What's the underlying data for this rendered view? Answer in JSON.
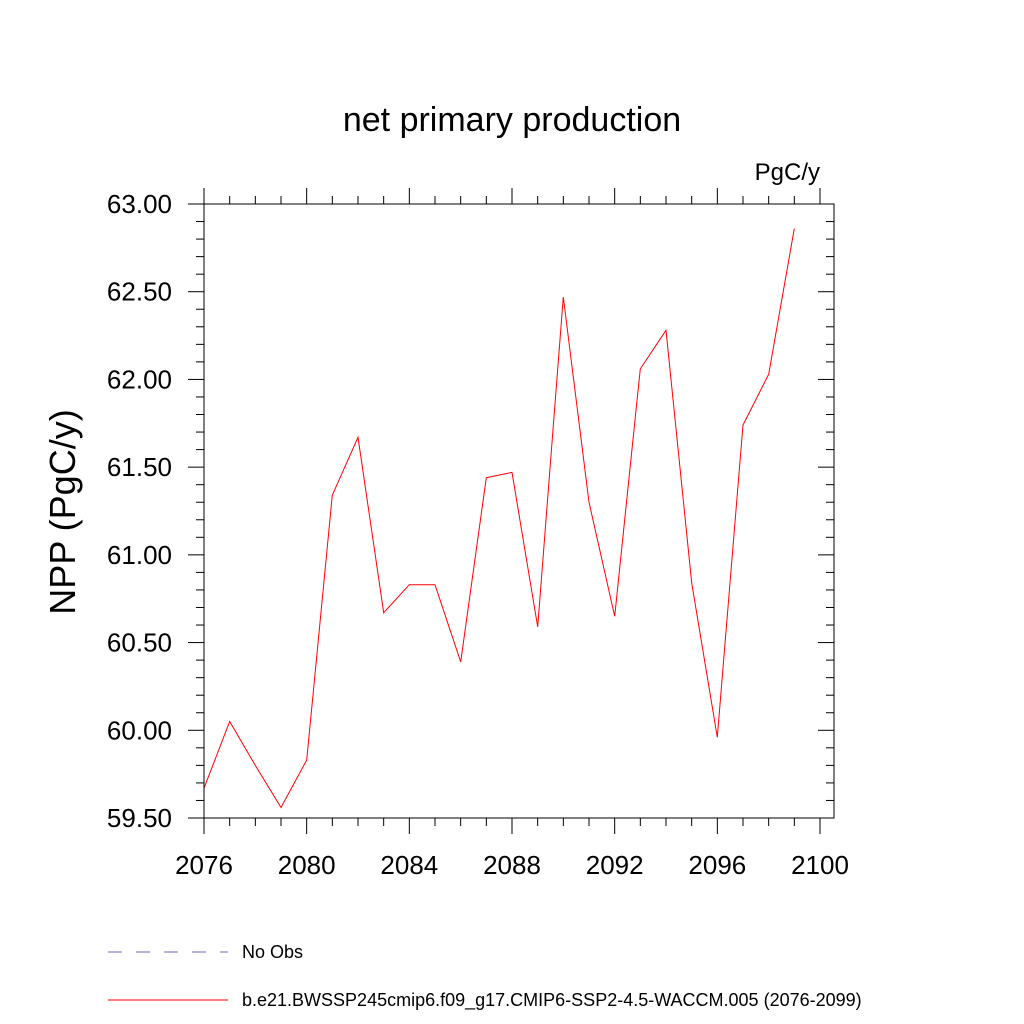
{
  "chart_data": {
    "type": "line",
    "title": "net primary production",
    "units": "PgC/y",
    "xlabel": "",
    "ylabel": "NPP  (PgC/y)",
    "xlim": [
      2076,
      2100
    ],
    "ylim": [
      59.5,
      63.0
    ],
    "xticks": [
      2076,
      2080,
      2084,
      2088,
      2092,
      2096,
      2100
    ],
    "xtick_labels": [
      "2076",
      "2080",
      "2084",
      "2088",
      "2092",
      "2096",
      "2100"
    ],
    "yticks": [
      59.5,
      60.0,
      60.5,
      61.0,
      61.5,
      62.0,
      62.5,
      63.0
    ],
    "ytick_labels": [
      "59.50",
      "60.00",
      "60.50",
      "61.00",
      "61.50",
      "62.00",
      "62.50",
      "63.00"
    ],
    "x": [
      2076,
      2077,
      2078,
      2079,
      2080,
      2081,
      2082,
      2083,
      2084,
      2085,
      2086,
      2087,
      2088,
      2089,
      2090,
      2091,
      2092,
      2093,
      2094,
      2095,
      2096,
      2097,
      2098,
      2099
    ],
    "series": [
      {
        "name": "b.e21.BWSSP245cmip6.f09_g17.CMIP6-SSP2-4.5-WACCM.005 (2076-2099)",
        "color": "#ff0000",
        "values": [
          59.67,
          60.05,
          59.8,
          59.56,
          59.83,
          61.34,
          61.67,
          60.67,
          60.83,
          60.83,
          60.39,
          61.44,
          61.47,
          60.59,
          62.47,
          61.3,
          60.65,
          62.06,
          62.28,
          60.84,
          59.96,
          61.74,
          62.03,
          62.86
        ]
      }
    ],
    "legend": [
      {
        "label": "No Obs",
        "style": "dashed",
        "color": "#6b6bb5"
      },
      {
        "label": "b.e21.BWSSP245cmip6.f09_g17.CMIP6-SSP2-4.5-WACCM.005 (2076-2099)",
        "style": "solid",
        "color": "#ff0000"
      }
    ]
  }
}
